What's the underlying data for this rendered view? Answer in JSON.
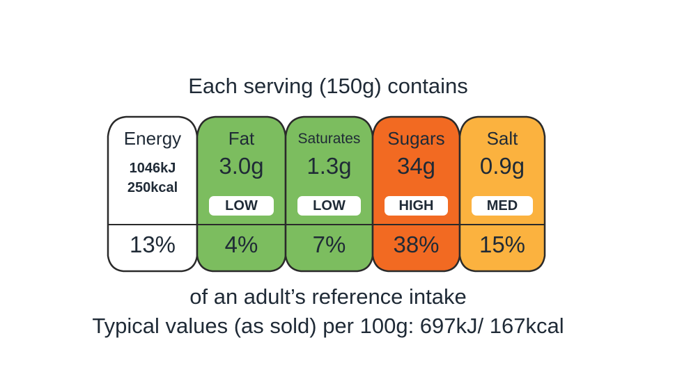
{
  "header": "Each serving (150g) contains",
  "cells": [
    {
      "name": "Energy",
      "kj": "1046kJ",
      "kcal": "250kcal",
      "percent": "13%",
      "color": "#ffffff"
    },
    {
      "name": "Fat",
      "amount": "3.0g",
      "level": "LOW",
      "percent": "4%",
      "color": "#7cbd5f"
    },
    {
      "name": "Saturates",
      "amount": "1.3g",
      "level": "LOW",
      "percent": "7%",
      "color": "#7cbd5f"
    },
    {
      "name": "Sugars",
      "amount": "34g",
      "level": "HIGH",
      "percent": "38%",
      "color": "#f26a22"
    },
    {
      "name": "Salt",
      "amount": "0.9g",
      "level": "MED",
      "percent": "15%",
      "color": "#fbb23f"
    }
  ],
  "footer_line1": "of an adult’s reference intake",
  "footer_line2": "Typical values (as sold) per 100g: 697kJ/ 167kcal"
}
